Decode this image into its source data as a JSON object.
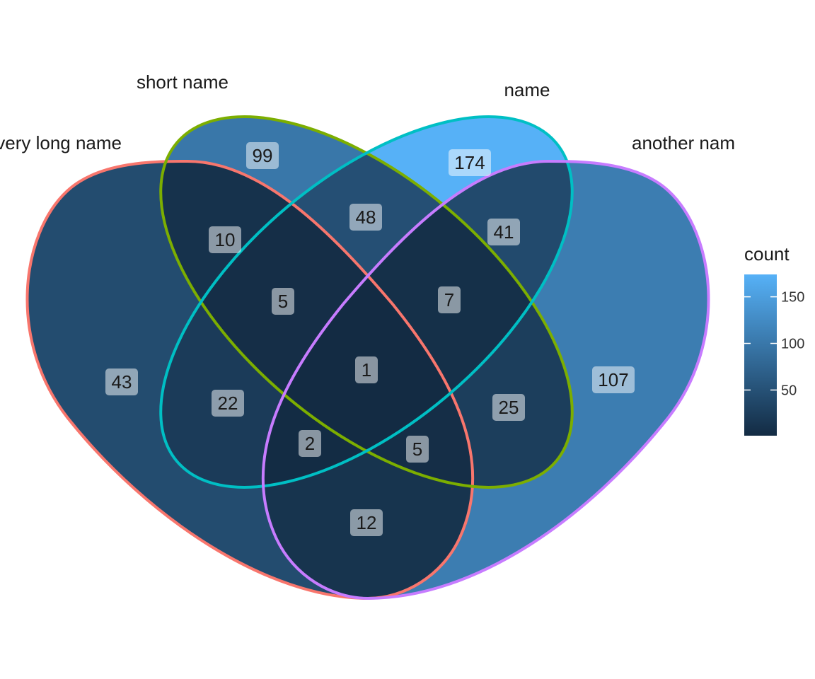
{
  "chart_data": {
    "type": "venn",
    "sets": [
      {
        "name": "very long name",
        "color": "#F8766D"
      },
      {
        "name": "short name",
        "color": "#7CAE00"
      },
      {
        "name": "name",
        "color": "#00BFC4"
      },
      {
        "name": "another name",
        "color": "#C77CFF"
      }
    ],
    "regions": [
      {
        "sets": [
          "very long name"
        ],
        "count": 43
      },
      {
        "sets": [
          "short name"
        ],
        "count": 99
      },
      {
        "sets": [
          "name"
        ],
        "count": 174
      },
      {
        "sets": [
          "another name"
        ],
        "count": 107
      },
      {
        "sets": [
          "very long name",
          "short name"
        ],
        "count": 10
      },
      {
        "sets": [
          "short name",
          "name"
        ],
        "count": 48
      },
      {
        "sets": [
          "name",
          "another name"
        ],
        "count": 41
      },
      {
        "sets": [
          "very long name",
          "short name",
          "name"
        ],
        "count": 5
      },
      {
        "sets": [
          "short name",
          "name",
          "another name"
        ],
        "count": 7
      },
      {
        "sets": [
          "very long name",
          "short name",
          "name",
          "another name"
        ],
        "count": 1
      },
      {
        "sets": [
          "very long name",
          "name"
        ],
        "count": 22
      },
      {
        "sets": [
          "short name",
          "another name"
        ],
        "count": 25
      },
      {
        "sets": [
          "very long name",
          "name",
          "another name"
        ],
        "count": 2
      },
      {
        "sets": [
          "very long name",
          "short name",
          "another name"
        ],
        "count": 5
      },
      {
        "sets": [
          "very long name",
          "another name"
        ],
        "count": 12
      }
    ],
    "legend": {
      "title": "count",
      "ticks": [
        50,
        100,
        150
      ],
      "range": [
        1,
        174
      ],
      "low_color": "#132B43",
      "high_color": "#56B1F7",
      "placement": "right"
    }
  }
}
